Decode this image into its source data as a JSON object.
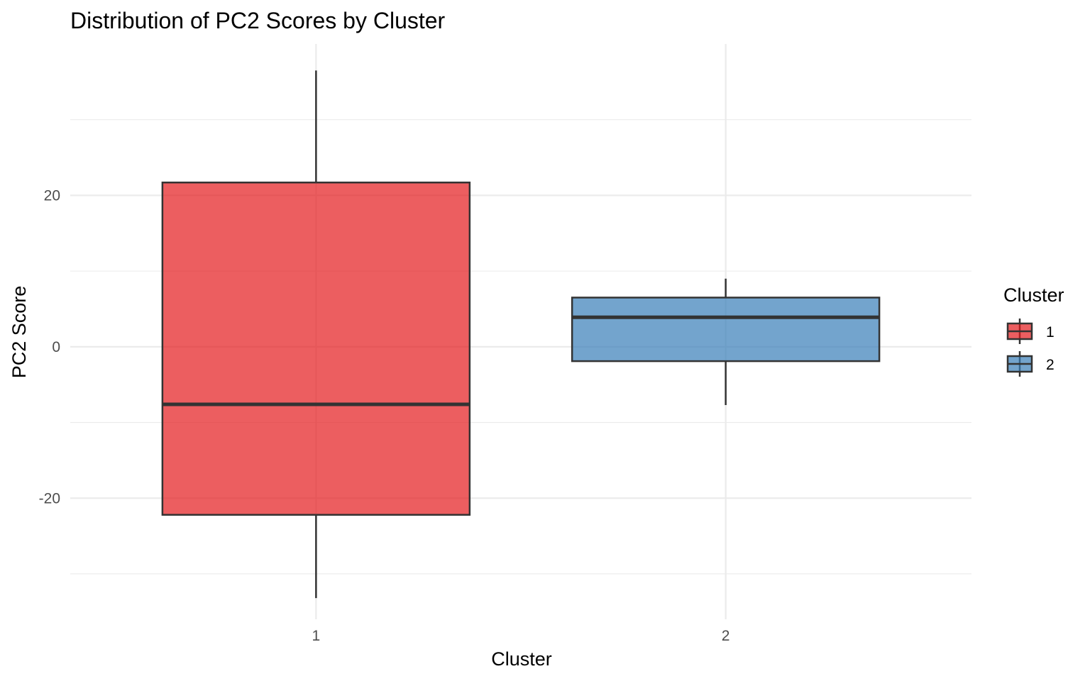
{
  "chart_data": {
    "type": "boxplot",
    "title": "Distribution of PC2 Scores by Cluster",
    "xlabel": "Cluster",
    "ylabel": "PC2 Score",
    "categories": [
      "1",
      "2"
    ],
    "ylim": [
      -36,
      40
    ],
    "yticks": [
      -20,
      0,
      20
    ],
    "grid": true,
    "legend": {
      "title": "Cluster",
      "placement": "right"
    },
    "series": [
      {
        "name": "1",
        "color": "#E41A1C",
        "whisker_low": -33.2,
        "q1": -22.2,
        "median": -7.6,
        "q3": 21.7,
        "whisker_high": 36.5
      },
      {
        "name": "2",
        "color": "#377EB8",
        "whisker_low": -7.7,
        "q1": -1.9,
        "median": 3.9,
        "q3": 6.5,
        "whisker_high": 9.0
      }
    ]
  }
}
